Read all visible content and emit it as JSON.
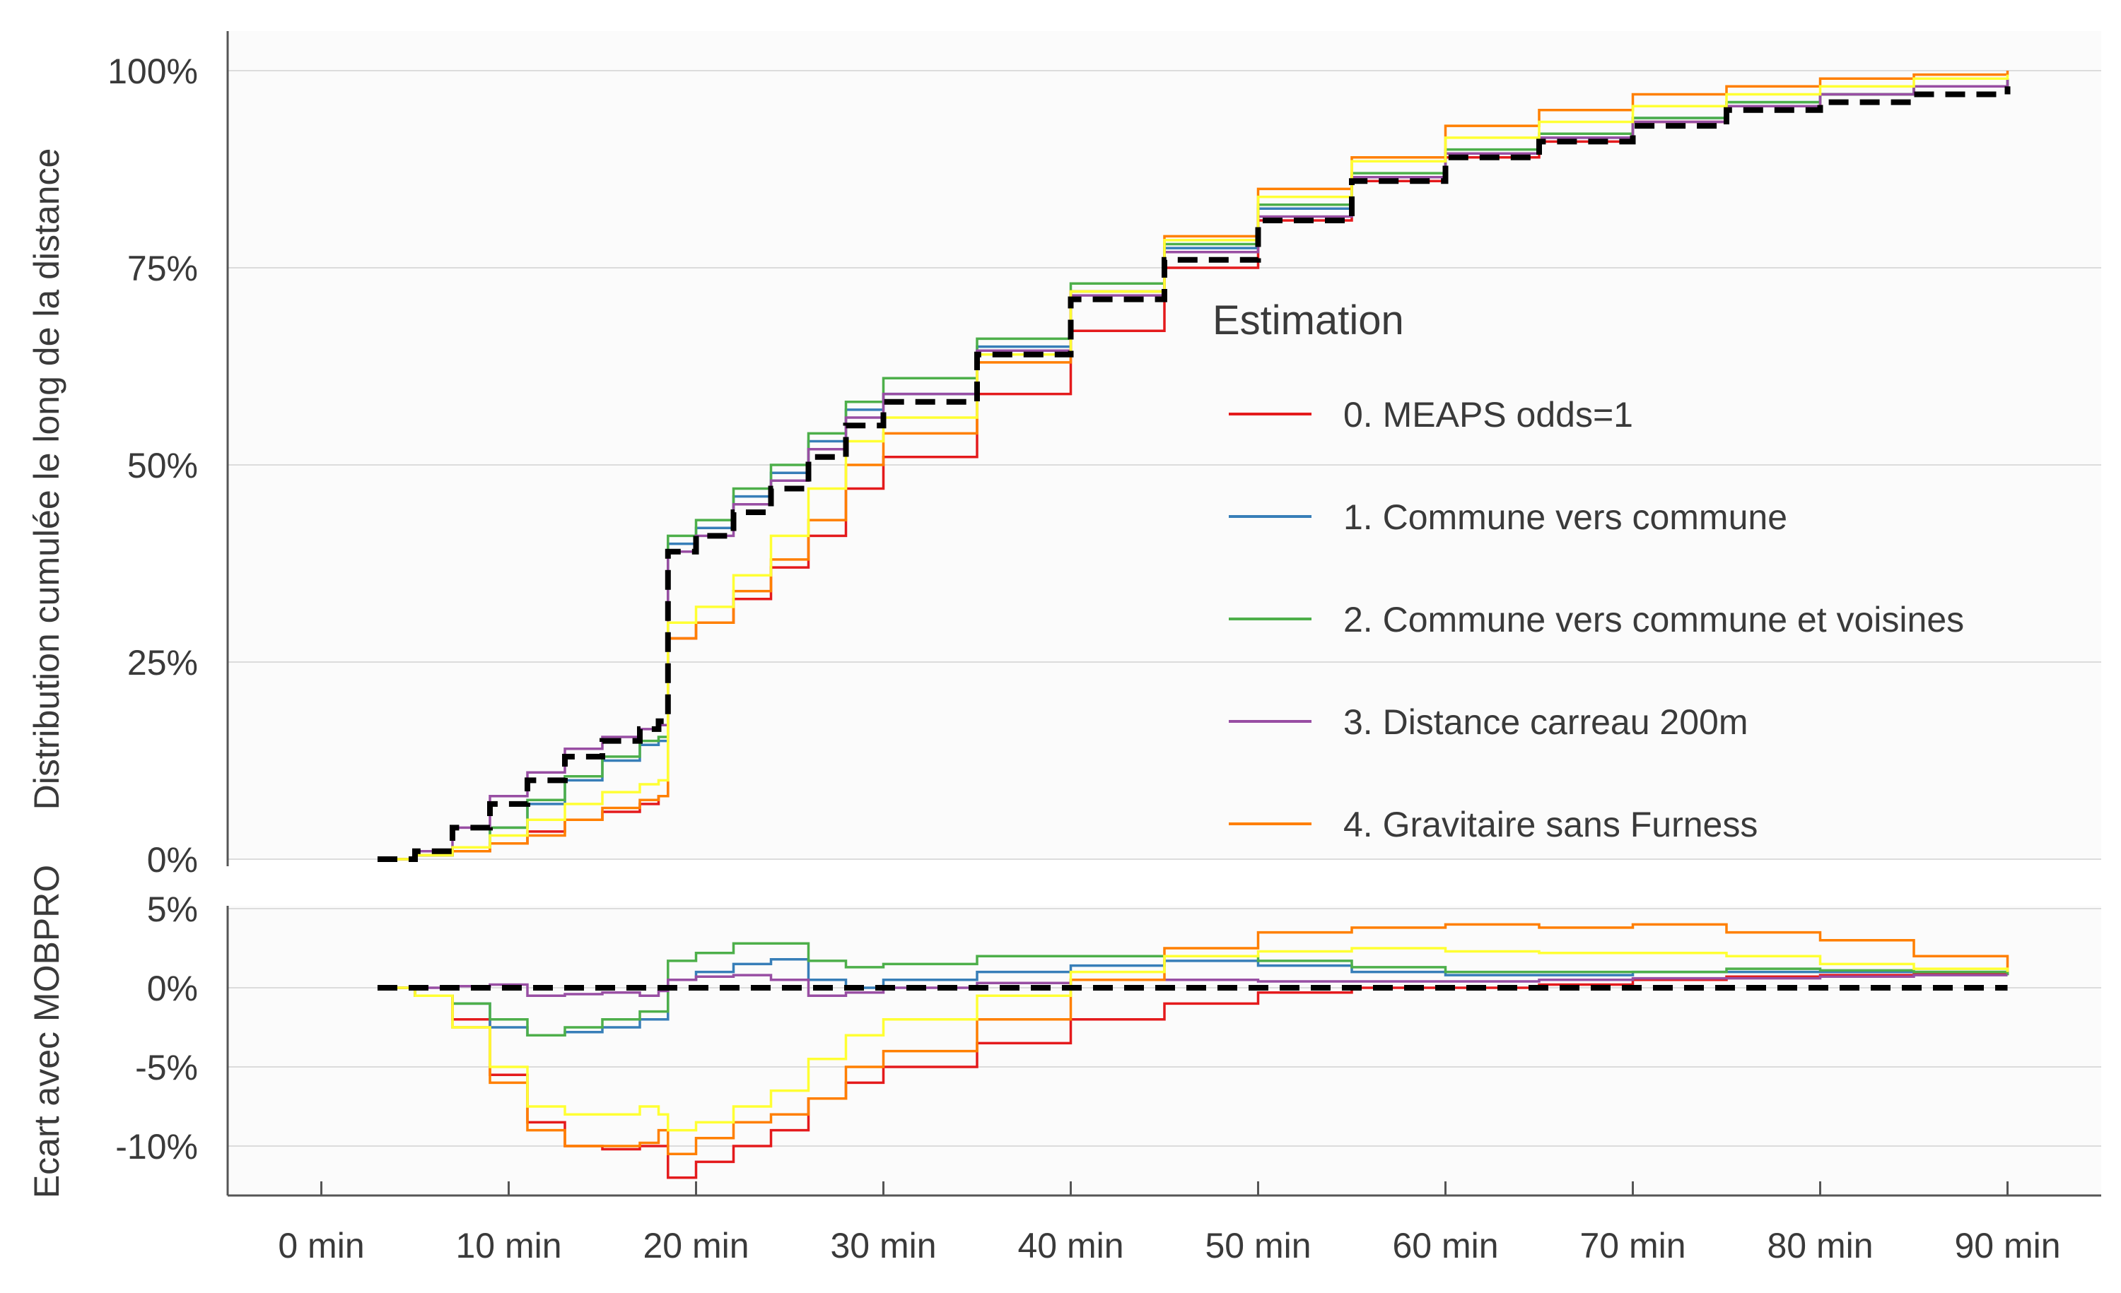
{
  "chart_data": [
    {
      "type": "line",
      "step": true,
      "ylabel": "Distribution cumulée le long de la distance",
      "ylim": [
        0,
        1
      ],
      "yticks": [
        0,
        0.25,
        0.5,
        0.75,
        1
      ],
      "yticklabels": [
        "0%",
        "25%",
        "50%",
        "75%",
        "100%"
      ],
      "xlim": [
        -5,
        95
      ],
      "grid": "horizontal",
      "legend": {
        "title": "Estimation",
        "placement": "right",
        "entries": [
          "0. MEAPS odds=1",
          "1. Commune vers commune",
          "2. Commune vers commune et voisines",
          "3. Distance carreau 200m",
          "4. Gravitaire sans Furness"
        ]
      },
      "reference": {
        "name": "MOBPRO",
        "style": "dashed",
        "color": "#000000",
        "x": [
          3,
          5,
          7,
          9,
          11,
          13,
          15,
          17,
          18,
          18.5,
          20,
          22,
          24,
          26,
          28,
          30,
          35,
          40,
          45,
          50,
          55,
          60,
          65,
          70,
          75,
          80,
          85,
          90
        ],
        "y": [
          0.0,
          0.01,
          0.04,
          0.07,
          0.1,
          0.13,
          0.15,
          0.165,
          0.175,
          0.39,
          0.41,
          0.44,
          0.47,
          0.51,
          0.55,
          0.58,
          0.64,
          0.71,
          0.76,
          0.81,
          0.86,
          0.89,
          0.91,
          0.93,
          0.95,
          0.96,
          0.97,
          0.98
        ]
      },
      "series": [
        {
          "name": "0. MEAPS odds=1",
          "color": "#e41a1c",
          "x": [
            3,
            5,
            7,
            9,
            11,
            13,
            15,
            17,
            18,
            18.5,
            20,
            22,
            24,
            26,
            28,
            30,
            35,
            40,
            45,
            50,
            55,
            60,
            65,
            70,
            75,
            80,
            85,
            90
          ],
          "y": [
            0.0,
            0.005,
            0.01,
            0.02,
            0.035,
            0.05,
            0.06,
            0.07,
            0.08,
            0.28,
            0.3,
            0.33,
            0.37,
            0.41,
            0.47,
            0.51,
            0.59,
            0.67,
            0.75,
            0.81,
            0.86,
            0.89,
            0.91,
            0.935,
            0.955,
            0.97,
            0.98,
            0.99
          ]
        },
        {
          "name": "1. Commune vers commune",
          "color": "#377eb8",
          "x": [
            3,
            5,
            7,
            9,
            11,
            13,
            15,
            17,
            18,
            18.5,
            20,
            22,
            24,
            26,
            28,
            30,
            35,
            40,
            45,
            50,
            55,
            60,
            65,
            70,
            75,
            80,
            85,
            90
          ],
          "y": [
            0.0,
            0.005,
            0.015,
            0.04,
            0.07,
            0.1,
            0.125,
            0.145,
            0.15,
            0.4,
            0.42,
            0.46,
            0.49,
            0.53,
            0.57,
            0.59,
            0.65,
            0.72,
            0.775,
            0.825,
            0.865,
            0.895,
            0.915,
            0.94,
            0.96,
            0.97,
            0.98,
            0.99
          ]
        },
        {
          "name": "2. Commune vers commune et voisines",
          "color": "#4daf4a",
          "x": [
            3,
            5,
            7,
            9,
            11,
            13,
            15,
            17,
            18,
            18.5,
            20,
            22,
            24,
            26,
            28,
            30,
            35,
            40,
            45,
            50,
            55,
            60,
            65,
            70,
            75,
            80,
            85,
            90
          ],
          "y": [
            0.0,
            0.005,
            0.015,
            0.04,
            0.075,
            0.105,
            0.13,
            0.15,
            0.155,
            0.41,
            0.43,
            0.47,
            0.5,
            0.54,
            0.58,
            0.61,
            0.66,
            0.73,
            0.78,
            0.83,
            0.87,
            0.9,
            0.92,
            0.94,
            0.96,
            0.97,
            0.98,
            0.99
          ]
        },
        {
          "name": "3. Distance carreau 200m",
          "color": "#984ea3",
          "x": [
            3,
            5,
            7,
            9,
            11,
            13,
            15,
            17,
            18,
            18.5,
            20,
            22,
            24,
            26,
            28,
            30,
            35,
            40,
            45,
            50,
            55,
            60,
            65,
            70,
            75,
            80,
            85,
            90
          ],
          "y": [
            0.0,
            0.01,
            0.04,
            0.08,
            0.11,
            0.14,
            0.155,
            0.165,
            0.17,
            0.39,
            0.41,
            0.45,
            0.48,
            0.52,
            0.56,
            0.59,
            0.645,
            0.715,
            0.77,
            0.815,
            0.865,
            0.895,
            0.915,
            0.935,
            0.955,
            0.97,
            0.98,
            0.99
          ]
        },
        {
          "name": "4. Gravitaire sans Furness",
          "color": "#ff7f00",
          "x": [
            3,
            5,
            7,
            9,
            11,
            13,
            15,
            17,
            18,
            18.5,
            20,
            22,
            24,
            26,
            28,
            30,
            35,
            40,
            45,
            50,
            55,
            60,
            65,
            70,
            75,
            80,
            85,
            90
          ],
          "y": [
            0.0,
            0.005,
            0.01,
            0.02,
            0.03,
            0.05,
            0.065,
            0.075,
            0.08,
            0.28,
            0.3,
            0.34,
            0.38,
            0.43,
            0.5,
            0.54,
            0.63,
            0.72,
            0.79,
            0.85,
            0.89,
            0.93,
            0.95,
            0.97,
            0.98,
            0.99,
            0.995,
            1.0
          ]
        },
        {
          "name": "",
          "color": "#ffff33",
          "x": [
            3,
            5,
            7,
            9,
            11,
            13,
            15,
            17,
            18,
            18.5,
            20,
            22,
            24,
            26,
            28,
            30,
            35,
            40,
            45,
            50,
            55,
            60,
            65,
            70,
            75,
            80,
            85,
            90
          ],
          "y": [
            0.0,
            0.005,
            0.015,
            0.03,
            0.05,
            0.07,
            0.085,
            0.095,
            0.1,
            0.3,
            0.32,
            0.36,
            0.41,
            0.47,
            0.53,
            0.56,
            0.64,
            0.72,
            0.785,
            0.84,
            0.885,
            0.915,
            0.935,
            0.955,
            0.97,
            0.98,
            0.99,
            0.995
          ]
        }
      ]
    },
    {
      "type": "line",
      "step": true,
      "ylabel": "Ecart avec MOBPRO",
      "xlabel": "",
      "ylim": [
        -0.125,
        0.05
      ],
      "yticks": [
        0.05,
        0,
        -0.05,
        -0.1
      ],
      "yticklabels": [
        "5%",
        "0%",
        "-5%",
        "-10%"
      ],
      "xlim": [
        -5,
        95
      ],
      "xticks": [
        0,
        10,
        20,
        30,
        40,
        50,
        60,
        70,
        80,
        90
      ],
      "xticklabels": [
        "0 min",
        "10 min",
        "20 min",
        "30 min",
        "40 min",
        "50 min",
        "60 min",
        "70 min",
        "80 min",
        "90 min"
      ],
      "grid": "horizontal",
      "reference": {
        "name": "MOBPRO",
        "style": "dashed",
        "color": "#000000",
        "x": [
          3,
          90
        ],
        "y": [
          0,
          0
        ]
      },
      "series": [
        {
          "name": "0. MEAPS odds=1",
          "color": "#e41a1c",
          "x": [
            3,
            5,
            7,
            9,
            11,
            13,
            15,
            17,
            18,
            18.5,
            20,
            22,
            24,
            26,
            28,
            30,
            35,
            40,
            45,
            50,
            55,
            60,
            65,
            70,
            75,
            80,
            85,
            90
          ],
          "y": [
            0,
            -0.005,
            -0.02,
            -0.055,
            -0.085,
            -0.1,
            -0.102,
            -0.1,
            -0.1,
            -0.12,
            -0.11,
            -0.1,
            -0.09,
            -0.07,
            -0.06,
            -0.05,
            -0.035,
            -0.02,
            -0.01,
            -0.003,
            0,
            0,
            0.002,
            0.005,
            0.007,
            0.008,
            0.009,
            0.008
          ]
        },
        {
          "name": "1. Commune vers commune",
          "color": "#377eb8",
          "x": [
            3,
            5,
            7,
            9,
            11,
            13,
            15,
            17,
            18,
            18.5,
            20,
            22,
            24,
            26,
            28,
            30,
            35,
            40,
            45,
            50,
            55,
            60,
            65,
            70,
            75,
            80,
            85,
            90
          ],
          "y": [
            0,
            -0.005,
            -0.01,
            -0.025,
            -0.03,
            -0.028,
            -0.025,
            -0.02,
            -0.02,
            0.005,
            0.01,
            0.015,
            0.018,
            0.005,
            0.0,
            0.005,
            0.01,
            0.014,
            0.017,
            0.014,
            0.01,
            0.008,
            0.008,
            0.01,
            0.01,
            0.01,
            0.01,
            0.008
          ]
        },
        {
          "name": "2. Commune vers commune et voisines",
          "color": "#4daf4a",
          "x": [
            3,
            5,
            7,
            9,
            11,
            13,
            15,
            17,
            18,
            18.5,
            20,
            22,
            24,
            26,
            28,
            30,
            35,
            40,
            45,
            50,
            55,
            60,
            65,
            70,
            75,
            80,
            85,
            90
          ],
          "y": [
            0,
            -0.005,
            -0.01,
            -0.02,
            -0.03,
            -0.025,
            -0.02,
            -0.015,
            -0.015,
            0.017,
            0.022,
            0.028,
            0.028,
            0.017,
            0.013,
            0.015,
            0.02,
            0.02,
            0.02,
            0.017,
            0.013,
            0.01,
            0.01,
            0.01,
            0.012,
            0.011,
            0.01,
            0.008
          ]
        },
        {
          "name": "3. Distance carreau 200m",
          "color": "#984ea3",
          "x": [
            3,
            5,
            7,
            9,
            11,
            13,
            15,
            17,
            18,
            18.5,
            20,
            22,
            24,
            26,
            28,
            30,
            35,
            40,
            45,
            50,
            55,
            60,
            65,
            70,
            75,
            80,
            85,
            90
          ],
          "y": [
            0,
            0,
            0.001,
            0.002,
            -0.005,
            -0.004,
            -0.003,
            -0.005,
            -0.002,
            0.005,
            0.007,
            0.008,
            0.005,
            -0.005,
            -0.003,
            0,
            0.003,
            0.005,
            0.005,
            0.004,
            0.004,
            0.004,
            0.005,
            0.006,
            0.006,
            0.007,
            0.008,
            0.008
          ]
        },
        {
          "name": "4. Gravitaire sans Furness",
          "color": "#ff7f00",
          "x": [
            3,
            5,
            7,
            9,
            11,
            13,
            15,
            17,
            18,
            18.5,
            20,
            22,
            24,
            26,
            28,
            30,
            35,
            40,
            45,
            50,
            55,
            60,
            65,
            70,
            75,
            80,
            85,
            90
          ],
          "y": [
            0,
            -0.005,
            -0.025,
            -0.06,
            -0.09,
            -0.1,
            -0.1,
            -0.098,
            -0.09,
            -0.105,
            -0.095,
            -0.085,
            -0.08,
            -0.07,
            -0.05,
            -0.04,
            -0.02,
            0.005,
            0.025,
            0.035,
            0.038,
            0.04,
            0.038,
            0.04,
            0.035,
            0.03,
            0.02,
            0.01
          ]
        },
        {
          "name": "",
          "color": "#ffff33",
          "x": [
            3,
            5,
            7,
            9,
            11,
            13,
            15,
            17,
            18,
            18.5,
            20,
            22,
            24,
            26,
            28,
            30,
            35,
            40,
            45,
            50,
            55,
            60,
            65,
            70,
            75,
            80,
            85,
            90
          ],
          "y": [
            0,
            -0.005,
            -0.025,
            -0.05,
            -0.075,
            -0.08,
            -0.08,
            -0.075,
            -0.08,
            -0.09,
            -0.085,
            -0.075,
            -0.065,
            -0.045,
            -0.03,
            -0.02,
            -0.005,
            0.01,
            0.02,
            0.023,
            0.025,
            0.023,
            0.022,
            0.022,
            0.02,
            0.015,
            0.012,
            0.01
          ]
        }
      ]
    }
  ]
}
